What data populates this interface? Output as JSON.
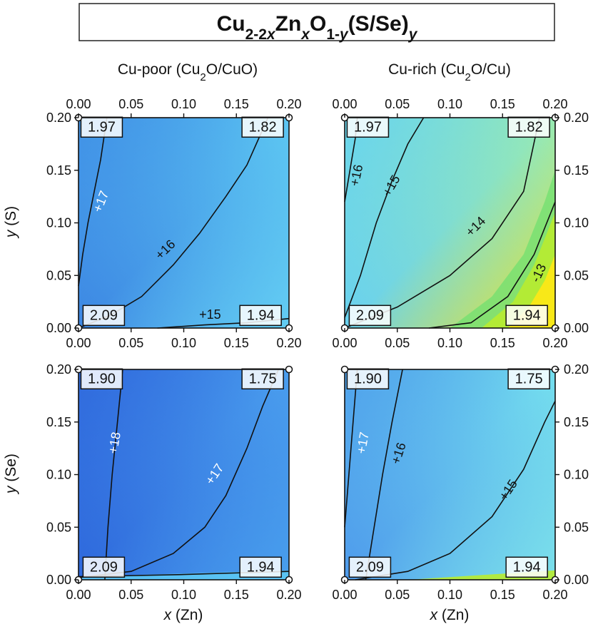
{
  "title": {
    "parts": [
      {
        "t": "Cu",
        "style": "n"
      },
      {
        "t": "2-2",
        "style": "sub"
      },
      {
        "t": "x",
        "style": "subi"
      },
      {
        "t": "Zn",
        "style": "n"
      },
      {
        "t": "x",
        "style": "subi"
      },
      {
        "t": "O",
        "style": "n"
      },
      {
        "t": "1-",
        "style": "sub"
      },
      {
        "t": "y",
        "style": "subi"
      },
      {
        "t": "(S/Se)",
        "style": "n"
      },
      {
        "t": "y",
        "style": "subi"
      }
    ]
  },
  "column_titles": [
    {
      "parts": [
        {
          "t": "Cu-poor (Cu",
          "style": "n"
        },
        {
          "t": "2",
          "style": "sub"
        },
        {
          "t": "O/CuO)",
          "style": "n"
        }
      ]
    },
    {
      "parts": [
        {
          "t": "Cu-rich (Cu",
          "style": "n"
        },
        {
          "t": "2",
          "style": "sub"
        },
        {
          "t": "O/Cu)",
          "style": "n"
        }
      ]
    }
  ],
  "row_labels": [
    {
      "var": "y",
      "unit": " (S)"
    },
    {
      "var": "y",
      "unit": " (Se)"
    }
  ],
  "x_axis_label": {
    "var": "x",
    "unit": " (Zn)"
  },
  "colors": {
    "deep_blue": "#2f6fe0",
    "blue": "#4a9cf0",
    "light_blue": "#5cc8f4",
    "cyan": "#70e0ec",
    "aqua_green": "#90ecc8",
    "green": "#70e070",
    "yellow_green": "#b8ec30",
    "yellow": "#f8e818",
    "contour_line": "#111111"
  },
  "chart_data": [
    {
      "type": "heatmap",
      "panel": "S, Cu-poor",
      "xlim": [
        0,
        0.2
      ],
      "ylim": [
        0,
        0.2
      ],
      "ticks": [
        "0.00",
        "0.05",
        "0.10",
        "0.15",
        "0.20"
      ],
      "corner_values": {
        "top_left": "1.97",
        "top_right": "1.82",
        "bottom_left": "2.09",
        "bottom_right": "1.94"
      },
      "contour_labels": [
        "+17",
        "+16",
        "+15"
      ],
      "field_colors": {
        "top_left": "#3f8fe6",
        "top_right": "#5cc6f2",
        "bottom_left": "#3c86e3",
        "bottom_right": "#66d2f4"
      }
    },
    {
      "type": "heatmap",
      "panel": "S, Cu-rich",
      "xlim": [
        0,
        0.2
      ],
      "ylim": [
        0,
        0.2
      ],
      "ticks": [
        "0.00",
        "0.05",
        "0.10",
        "0.15",
        "0.20"
      ],
      "corner_values": {
        "top_left": "1.97",
        "top_right": "1.82",
        "bottom_left": "2.09",
        "bottom_right": "1.94"
      },
      "contour_labels": [
        "+16",
        "+15",
        "+14",
        "-13"
      ],
      "field_colors": {
        "top_left": "#66d4f2",
        "top_right": "#98eab2",
        "bottom_left": "#68d0f0",
        "bottom_right": "#f4e41c"
      }
    },
    {
      "type": "heatmap",
      "panel": "Se, Cu-poor",
      "xlim": [
        0,
        0.2
      ],
      "ylim": [
        0,
        0.2
      ],
      "ticks": [
        "0.00",
        "0.05",
        "0.10",
        "0.15",
        "0.20"
      ],
      "corner_values": {
        "top_left": "1.90",
        "top_right": "1.75",
        "bottom_left": "2.09",
        "bottom_right": "1.94"
      },
      "contour_labels": [
        "+18",
        "+17"
      ],
      "field_colors": {
        "top_left": "#2e66dc",
        "top_right": "#4a9eee",
        "bottom_left": "#2e68dc",
        "bottom_right": "#4aa2ee"
      }
    },
    {
      "type": "heatmap",
      "panel": "Se, Cu-rich",
      "xlim": [
        0,
        0.2
      ],
      "ylim": [
        0,
        0.2
      ],
      "ticks": [
        "0.00",
        "0.05",
        "0.10",
        "0.15",
        "0.20"
      ],
      "corner_values": {
        "top_left": "1.90",
        "top_right": "1.75",
        "bottom_left": "2.09",
        "bottom_right": "1.94"
      },
      "contour_labels": [
        "+17",
        "+16",
        "+15"
      ],
      "field_colors": {
        "top_left": "#4d9eec",
        "top_right": "#74deee",
        "bottom_left": "#4e9aec",
        "bottom_right": "#7ee4ea"
      }
    }
  ]
}
